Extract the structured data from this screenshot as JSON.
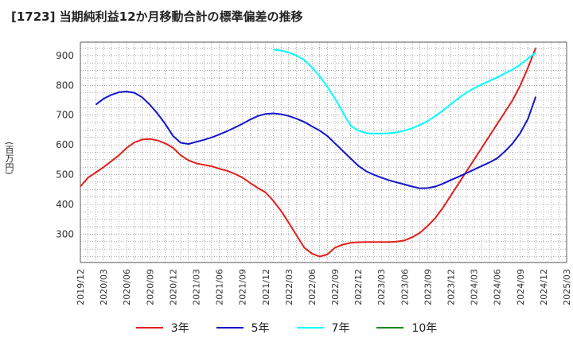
{
  "chart_data": {
    "type": "line",
    "title": "[1723]  当期純利益12か月移動合計の標準偏差の推移",
    "ylabel": "(百万円)",
    "xlabel": "",
    "ylim": [
      205,
      945
    ],
    "yticks": [
      300,
      400,
      500,
      600,
      700,
      800,
      900
    ],
    "xlim": [
      "2019-12",
      "2025-03"
    ],
    "xticks": [
      "2019/12",
      "2020/03",
      "2020/06",
      "2020/09",
      "2020/12",
      "2021/03",
      "2021/06",
      "2021/09",
      "2021/12",
      "2022/03",
      "2022/06",
      "2022/09",
      "2022/12",
      "2023/03",
      "2023/06",
      "2023/09",
      "2023/12",
      "2024/03",
      "2024/06",
      "2024/09",
      "2024/12",
      "2025/03"
    ],
    "grid": true,
    "legend_position": "bottom",
    "series": [
      {
        "name": "3年",
        "color": "#e0201b",
        "points": [
          [
            "2019-12",
            460
          ],
          [
            "2020-01",
            490
          ],
          [
            "2020-03",
            525
          ],
          [
            "2020-05",
            565
          ],
          [
            "2020-06",
            590
          ],
          [
            "2020-07",
            608
          ],
          [
            "2020-08",
            618
          ],
          [
            "2020-09",
            620
          ],
          [
            "2020-10",
            615
          ],
          [
            "2020-11",
            605
          ],
          [
            "2020-12",
            590
          ],
          [
            "2021-01",
            565
          ],
          [
            "2021-02",
            548
          ],
          [
            "2021-03",
            538
          ],
          [
            "2021-04",
            533
          ],
          [
            "2021-05",
            528
          ],
          [
            "2021-06",
            520
          ],
          [
            "2021-07",
            513
          ],
          [
            "2021-08",
            503
          ],
          [
            "2021-09",
            490
          ],
          [
            "2021-10",
            472
          ],
          [
            "2021-11",
            455
          ],
          [
            "2021-12",
            440
          ],
          [
            "2022-01",
            412
          ],
          [
            "2022-02",
            378
          ],
          [
            "2022-03",
            338
          ],
          [
            "2022-04",
            296
          ],
          [
            "2022-05",
            255
          ],
          [
            "2022-06",
            235
          ],
          [
            "2022-07",
            225
          ],
          [
            "2022-08",
            232
          ],
          [
            "2022-09",
            255
          ],
          [
            "2022-10",
            265
          ],
          [
            "2022-11",
            271
          ],
          [
            "2022-12",
            273
          ],
          [
            "2023-01",
            274
          ],
          [
            "2023-02",
            274
          ],
          [
            "2023-03",
            274
          ],
          [
            "2023-04",
            274
          ],
          [
            "2023-05",
            275
          ],
          [
            "2023-06",
            279
          ],
          [
            "2023-07",
            290
          ],
          [
            "2023-08",
            305
          ],
          [
            "2023-09",
            328
          ],
          [
            "2023-10",
            355
          ],
          [
            "2023-11",
            390
          ],
          [
            "2023-12",
            430
          ],
          [
            "2024-01",
            470
          ],
          [
            "2024-02",
            510
          ],
          [
            "2024-03",
            550
          ],
          [
            "2024-04",
            590
          ],
          [
            "2024-05",
            630
          ],
          [
            "2024-06",
            670
          ],
          [
            "2024-07",
            710
          ],
          [
            "2024-08",
            750
          ],
          [
            "2024-09",
            800
          ],
          [
            "2024-10",
            860
          ],
          [
            "2024-11",
            925
          ]
        ]
      },
      {
        "name": "5年",
        "color": "#1414c8",
        "points": [
          [
            "2020-02",
            735
          ],
          [
            "2020-03",
            755
          ],
          [
            "2020-04",
            768
          ],
          [
            "2020-05",
            777
          ],
          [
            "2020-06",
            779
          ],
          [
            "2020-07",
            775
          ],
          [
            "2020-08",
            760
          ],
          [
            "2020-09",
            735
          ],
          [
            "2020-10",
            705
          ],
          [
            "2020-11",
            670
          ],
          [
            "2020-12",
            630
          ],
          [
            "2021-01",
            607
          ],
          [
            "2021-02",
            603
          ],
          [
            "2021-03",
            610
          ],
          [
            "2021-04",
            617
          ],
          [
            "2021-05",
            625
          ],
          [
            "2021-06",
            635
          ],
          [
            "2021-07",
            646
          ],
          [
            "2021-08",
            658
          ],
          [
            "2021-09",
            671
          ],
          [
            "2021-10",
            685
          ],
          [
            "2021-11",
            697
          ],
          [
            "2021-12",
            704
          ],
          [
            "2022-01",
            706
          ],
          [
            "2022-02",
            703
          ],
          [
            "2022-03",
            697
          ],
          [
            "2022-04",
            688
          ],
          [
            "2022-05",
            677
          ],
          [
            "2022-06",
            662
          ],
          [
            "2022-07",
            648
          ],
          [
            "2022-08",
            630
          ],
          [
            "2022-09",
            605
          ],
          [
            "2022-10",
            580
          ],
          [
            "2022-11",
            555
          ],
          [
            "2022-12",
            530
          ],
          [
            "2023-01",
            512
          ],
          [
            "2023-02",
            500
          ],
          [
            "2023-03",
            490
          ],
          [
            "2023-04",
            481
          ],
          [
            "2023-05",
            474
          ],
          [
            "2023-06",
            467
          ],
          [
            "2023-07",
            460
          ],
          [
            "2023-08",
            454
          ],
          [
            "2023-09",
            455
          ],
          [
            "2023-10",
            460
          ],
          [
            "2023-11",
            470
          ],
          [
            "2023-12",
            482
          ],
          [
            "2024-01",
            493
          ],
          [
            "2024-02",
            505
          ],
          [
            "2024-03",
            517
          ],
          [
            "2024-04",
            529
          ],
          [
            "2024-05",
            541
          ],
          [
            "2024-06",
            555
          ],
          [
            "2024-07",
            578
          ],
          [
            "2024-08",
            605
          ],
          [
            "2024-09",
            640
          ],
          [
            "2024-10",
            688
          ],
          [
            "2024-11",
            762
          ]
        ]
      },
      {
        "name": "7年",
        "color": "#00ffff",
        "points": [
          [
            "2022-01",
            920
          ],
          [
            "2022-02",
            917
          ],
          [
            "2022-03",
            910
          ],
          [
            "2022-04",
            900
          ],
          [
            "2022-05",
            885
          ],
          [
            "2022-06",
            860
          ],
          [
            "2022-07",
            830
          ],
          [
            "2022-08",
            795
          ],
          [
            "2022-09",
            755
          ],
          [
            "2022-10",
            710
          ],
          [
            "2022-11",
            665
          ],
          [
            "2022-12",
            648
          ],
          [
            "2023-01",
            640
          ],
          [
            "2023-02",
            638
          ],
          [
            "2023-03",
            638
          ],
          [
            "2023-04",
            639
          ],
          [
            "2023-05",
            642
          ],
          [
            "2023-06",
            648
          ],
          [
            "2023-07",
            656
          ],
          [
            "2023-08",
            667
          ],
          [
            "2023-09",
            680
          ],
          [
            "2023-10",
            697
          ],
          [
            "2023-11",
            716
          ],
          [
            "2023-12",
            737
          ],
          [
            "2024-01",
            757
          ],
          [
            "2024-02",
            775
          ],
          [
            "2024-03",
            790
          ],
          [
            "2024-04",
            803
          ],
          [
            "2024-05",
            815
          ],
          [
            "2024-06",
            827
          ],
          [
            "2024-07",
            840
          ],
          [
            "2024-08",
            853
          ],
          [
            "2024-09",
            870
          ],
          [
            "2024-10",
            890
          ],
          [
            "2024-11",
            910
          ]
        ]
      },
      {
        "name": "10年",
        "color": "#1a8a1a",
        "points": []
      }
    ]
  }
}
